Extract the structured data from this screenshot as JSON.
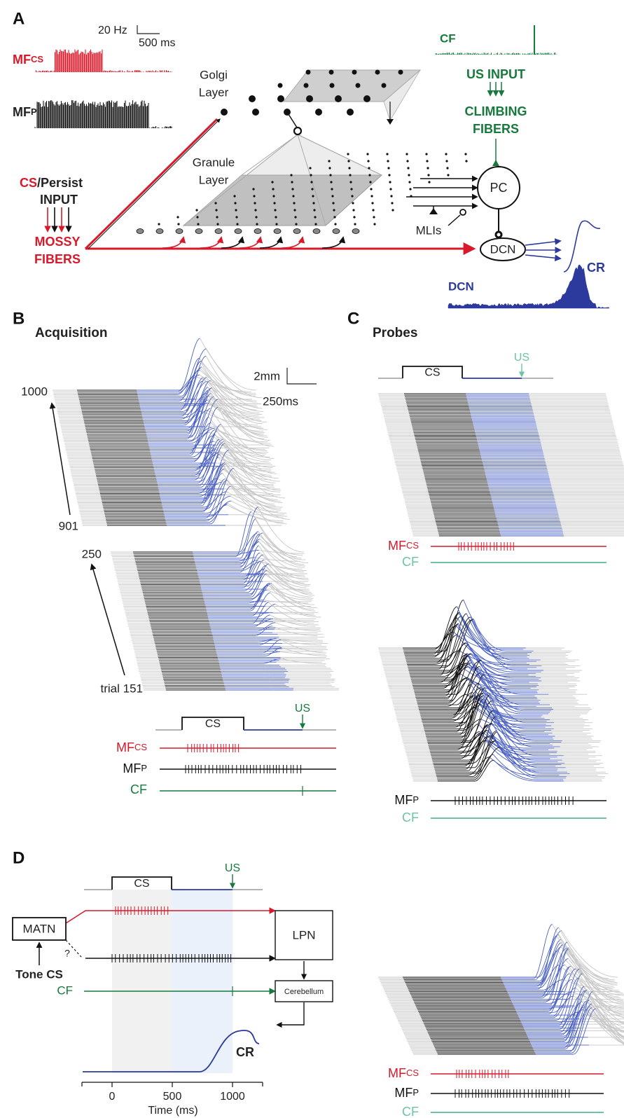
{
  "panel_a": {
    "label": "A",
    "scale_bar": {
      "rate": "20 Hz",
      "time": "500 ms"
    },
    "mf_cs": {
      "main": "MF",
      "sub": "CS"
    },
    "mf_p": {
      "main": "MF",
      "sub": "P"
    },
    "golgi_layer": [
      "Golgi",
      "Layer"
    ],
    "granule_layer": [
      "Granule",
      "Layer"
    ],
    "input": {
      "cs": "CS",
      "persist": "/Persist",
      "line2": "INPUT"
    },
    "mossy_fibers": [
      "MOSSY",
      "FIBERS"
    ],
    "cf": "CF",
    "us_input": "US INPUT",
    "climbing_fibers": [
      "CLIMBING",
      "FIBERS"
    ],
    "pc": "PC",
    "mlis": "MLIs",
    "dcn_node": "DCN",
    "cr": "CR",
    "dcn_hist": "DCN"
  },
  "panel_b": {
    "label": "B",
    "title": "Acquisition",
    "scale_bar": {
      "size": "2mm",
      "time": "250ms"
    },
    "trials": [
      "1000",
      "901",
      "250",
      "trial 151"
    ],
    "timeline": {
      "cs": "CS",
      "us": "US"
    },
    "mf_cs": {
      "main": "MF",
      "sub": "CS"
    },
    "mf_p": {
      "main": "MF",
      "sub": "P"
    },
    "cf": "CF"
  },
  "panel_c": {
    "label": "C",
    "title": "Probes",
    "timeline": {
      "cs": "CS",
      "us": "US"
    },
    "probe_1": {
      "mf_cs": {
        "main": "MF",
        "sub": "CS"
      },
      "cf": "CF"
    },
    "probe_2": {
      "mf_p": {
        "main": "MF",
        "sub": "P"
      },
      "cf": "CF"
    },
    "probe_3": {
      "mf_cs": {
        "main": "MF",
        "sub": "CS"
      },
      "mf_p": {
        "main": "MF",
        "sub": "P"
      },
      "cf": "CF"
    }
  },
  "panel_d": {
    "label": "D",
    "timeline": {
      "cs": "CS",
      "us": "US"
    },
    "matn": "MATN",
    "question": "?",
    "tone_cs": "Tone CS",
    "cf": "CF",
    "lpn": "LPN",
    "cerebellum": "Cerebellum",
    "cr": "CR",
    "axis": {
      "xlim": [
        -250,
        1250
      ],
      "xticks": [
        0,
        500,
        1000
      ],
      "label": "Time (ms)"
    }
  }
}
